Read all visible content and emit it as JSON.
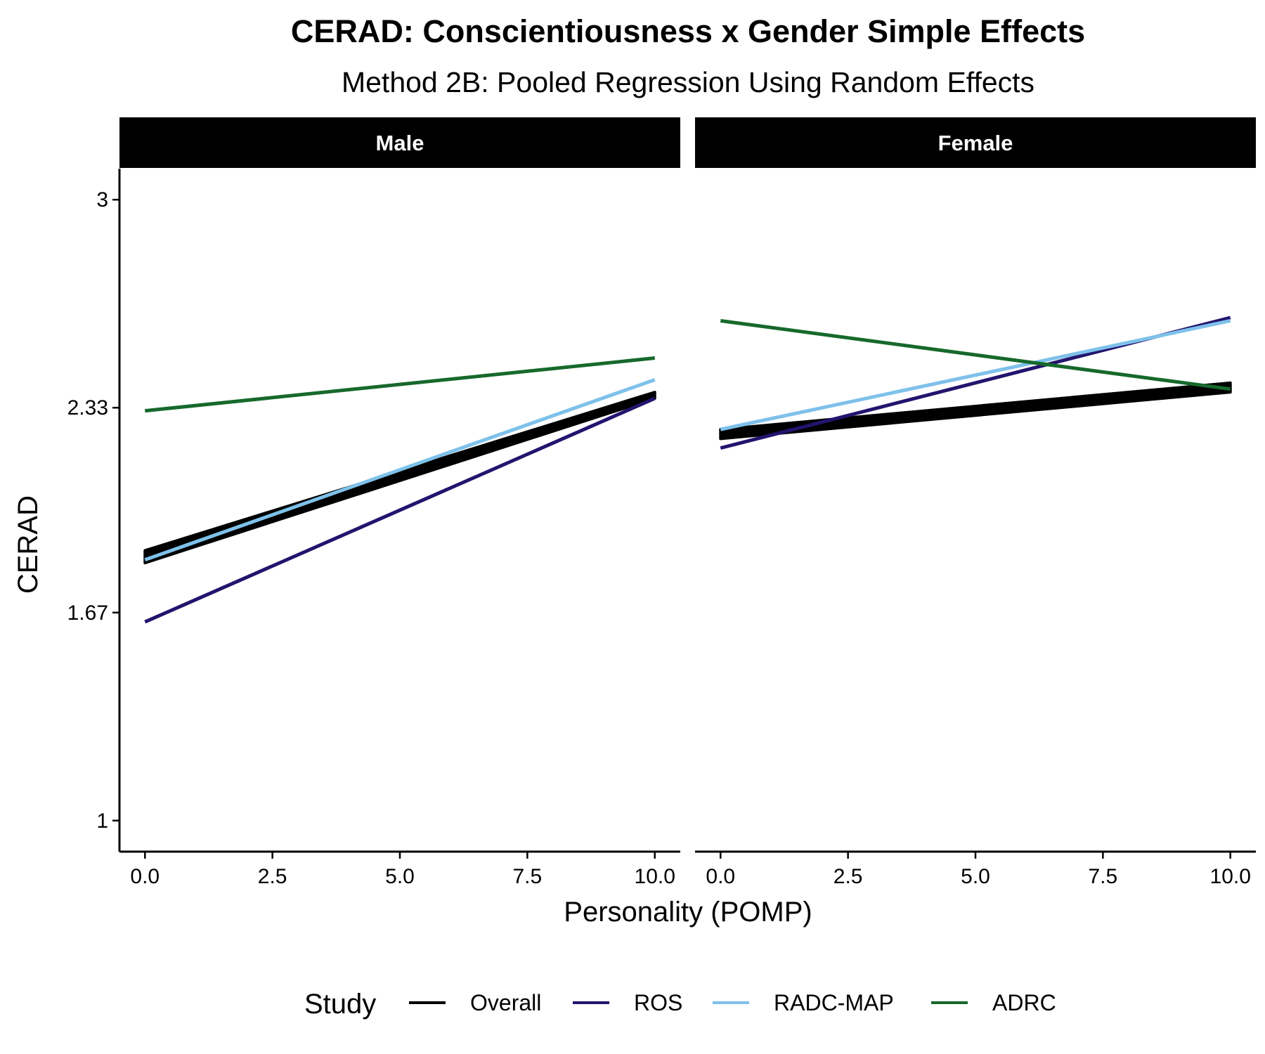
{
  "chart_data": {
    "type": "line",
    "title": "CERAD: Conscientiousness x Gender Simple Effects",
    "subtitle": "Method 2B: Pooled Regression Using Random Effects",
    "xlabel": "Personality (POMP)",
    "ylabel": "CERAD",
    "xlim": [
      -0.5,
      10.5
    ],
    "ylim": [
      0.9,
      3.1
    ],
    "x_ticks": [
      0,
      2.5,
      5,
      7.5,
      10
    ],
    "x_tick_labels": [
      "0.0",
      "2.5",
      "5.0",
      "7.5",
      "10.0"
    ],
    "y_ticks": [
      1,
      1.67,
      2.33,
      3
    ],
    "y_tick_labels": [
      "1",
      "1.67",
      "2.33",
      "3"
    ],
    "grid": false,
    "legend": {
      "title": "Study",
      "position": "bottom",
      "entries": [
        "Overall",
        "ROS",
        "RADC-MAP",
        "ADRC"
      ]
    },
    "colors": {
      "Overall": "#000000",
      "ROS": "#23146e",
      "RADC-MAP": "#7ec1ea",
      "ADRC": "#16692b"
    },
    "panels": [
      {
        "label": "Male",
        "series": [
          {
            "name": "Overall",
            "x": [
              0,
              10
            ],
            "y": [
              1.85,
              2.37
            ],
            "y_lower": [
              1.83,
              2.36
            ],
            "y_upper": [
              1.87,
              2.38
            ]
          },
          {
            "name": "ROS",
            "x": [
              0,
              10
            ],
            "y": [
              1.64,
              2.36
            ]
          },
          {
            "name": "RADC-MAP",
            "x": [
              0,
              10
            ],
            "y": [
              1.84,
              2.42
            ]
          },
          {
            "name": "ADRC",
            "x": [
              0,
              10
            ],
            "y": [
              2.32,
              2.49
            ]
          }
        ]
      },
      {
        "label": "Female",
        "series": [
          {
            "name": "Overall",
            "x": [
              0,
              10
            ],
            "y": [
              2.24,
              2.39
            ],
            "y_lower": [
              2.23,
              2.38
            ],
            "y_upper": [
              2.26,
              2.41
            ]
          },
          {
            "name": "ROS",
            "x": [
              0,
              10
            ],
            "y": [
              2.2,
              2.62
            ]
          },
          {
            "name": "RADC-MAP",
            "x": [
              0,
              10
            ],
            "y": [
              2.26,
              2.61
            ]
          },
          {
            "name": "ADRC",
            "x": [
              0,
              10
            ],
            "y": [
              2.61,
              2.39
            ]
          }
        ]
      }
    ]
  }
}
